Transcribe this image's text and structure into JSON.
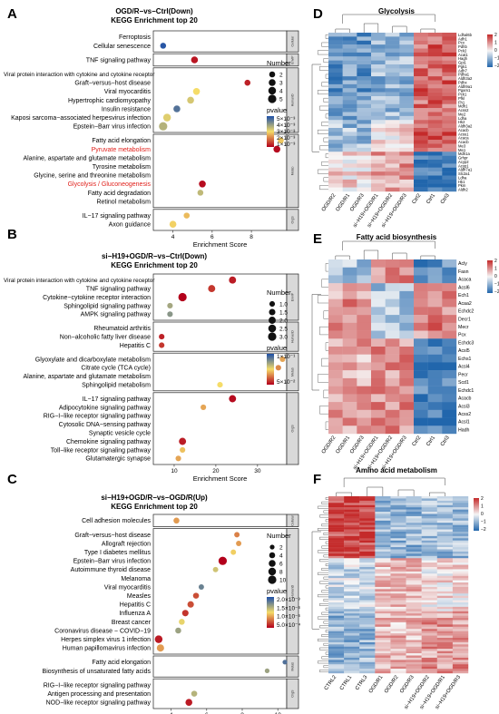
{
  "panels": [
    {
      "label": "A",
      "title_1": "OGD/R−vs−Ctrl(Down)",
      "title_2": "KEGG Enrichment top 20"
    },
    {
      "label": "B",
      "title_1": "si−H19+OGD/R−vs−Ctrl(Down)",
      "title_2": "KEGG Enrichment top 20"
    },
    {
      "label": "C",
      "title_1": "si−H19+OGD/R−vs−OGD/R(Up)",
      "title_2": "KEGG Enrichment top 20"
    },
    {
      "label": "D",
      "title_1": "Glycolysis"
    },
    {
      "label": "E",
      "title_1": "Fatty acid biosynthesis"
    },
    {
      "label": "F",
      "title_1": "Amino acid metabolism"
    }
  ],
  "chart_data": [
    {
      "type": "scatter",
      "panel": "A",
      "xlabel": "Enrichment Score",
      "xticks": [
        4,
        6,
        8
      ],
      "xlim": [
        3,
        9.8
      ],
      "size_legend_title": "Number",
      "size_legend": [
        2,
        3,
        4,
        5
      ],
      "color_legend_title": "pvalue",
      "color_legend": [
        "5×10⁻³",
        "4×10⁻³",
        "3×10⁻³",
        "2×10⁻³",
        "1×10⁻³"
      ],
      "color_range": [
        0.001,
        0.005
      ],
      "groups": [
        {
          "strip": "Cellular",
          "terms": [
            {
              "term": "Ferroptosis",
              "x": null,
              "n": null,
              "p": null
            },
            {
              "term": "Cellular senescence",
              "x": 3.5,
              "n": 2,
              "p": 0.0049
            }
          ]
        },
        {
          "strip": "EnvIP",
          "terms": [
            {
              "term": "TNF signaling pathway",
              "x": 5.1,
              "n": 3,
              "p": 0.0012
            }
          ]
        },
        {
          "strip": "HumanD",
          "terms": [
            {
              "term": "Viral protein interaction with cytokine and cytokine receptor",
              "x": null,
              "n": null,
              "p": null
            },
            {
              "term": "Graft−versus−host disease",
              "x": 7.8,
              "n": 2,
              "p": 0.0013
            },
            {
              "term": "Viral myocarditis",
              "x": 5.2,
              "n": 3,
              "p": 0.003
            },
            {
              "term": "Hypertrophic cardiomyopathy",
              "x": 4.9,
              "n": 3,
              "p": 0.0033
            },
            {
              "term": "Insulin resistance",
              "x": 4.2,
              "n": 3,
              "p": 0.0045
            },
            {
              "term": "Kaposi sarcoma−associated herpesvirus infection",
              "x": 3.7,
              "n": 4,
              "p": 0.0032
            },
            {
              "term": "Epstein−Barr virus infection",
              "x": 3.5,
              "n": 5,
              "p": 0.0036
            }
          ]
        },
        {
          "strip": "Metab",
          "terms": [
            {
              "term": "Fatty acid elongation",
              "x": 9.5,
              "n": 2,
              "p": 0.0028
            },
            {
              "term": "Pyruvate metabolism",
              "x": 9.3,
              "n": 3,
              "p": 0.0011,
              "highlight": true
            },
            {
              "term": "Alanine, aspartate and glutamate metabolism",
              "x": null,
              "n": null,
              "p": null
            },
            {
              "term": "Tyrosine metabolism",
              "x": null,
              "n": null,
              "p": null
            },
            {
              "term": "Glycine, serine and threonine metabolism",
              "x": null,
              "n": null,
              "p": null
            },
            {
              "term": "Glycolysis / Gluconeogenesis",
              "x": 5.5,
              "n": 3,
              "p": 0.0011,
              "highlight": true
            },
            {
              "term": "Fatty acid degradation",
              "x": 5.4,
              "n": 2,
              "p": 0.0035
            },
            {
              "term": "Retinol metabolism",
              "x": null,
              "n": null,
              "p": null
            }
          ]
        },
        {
          "strip": "OrgS",
          "terms": [
            {
              "term": "IL−17 signaling pathway",
              "x": 4.7,
              "n": 2,
              "p": 0.0027
            },
            {
              "term": "Axon guidance",
              "x": 4.0,
              "n": 3,
              "p": 0.0029
            }
          ]
        }
      ]
    },
    {
      "type": "scatter",
      "panel": "B",
      "xlabel": "Enrichment Score",
      "xticks": [
        10,
        20,
        30
      ],
      "xlim": [
        5,
        37
      ],
      "size_legend_title": "Number",
      "size_legend": [
        1.0,
        1.5,
        2.0,
        2.5,
        3.0
      ],
      "color_legend_title": "pvalue",
      "color_legend": [
        "1×10⁻¹",
        "5×10⁻²"
      ],
      "color_range": [
        0.03,
        0.11
      ],
      "groups": [
        {
          "strip": "EnvIP",
          "terms": [
            {
              "term": "Viral protein interaction with cytokine and cytokine receptor",
              "x": 24,
              "n": 2,
              "p": 0.035
            },
            {
              "term": "TNF signaling pathway",
              "x": 19,
              "n": 2,
              "p": 0.04
            },
            {
              "term": "Cytokine−cytokine receptor interaction",
              "x": 12,
              "n": 3,
              "p": 0.03
            },
            {
              "term": "Sphingolipid signaling pathway",
              "x": 9,
              "n": 1,
              "p": 0.085
            },
            {
              "term": "AMPK signaling pathway",
              "x": 9,
              "n": 1,
              "p": 0.09
            }
          ]
        },
        {
          "strip": "HumanD",
          "terms": [
            {
              "term": "Rheumatoid arthritis",
              "x": null,
              "n": null,
              "p": null
            },
            {
              "term": "Non−alcoholic fatty liver disease",
              "x": 7,
              "n": 1,
              "p": 0.036
            },
            {
              "term": "Hepatitis C",
              "x": 7,
              "n": 1,
              "p": 0.04
            }
          ]
        },
        {
          "strip": "Metab",
          "terms": [
            {
              "term": "Glyoxylate and dicarboxylate metabolism",
              "x": 36,
              "n": 1,
              "p": 0.06
            },
            {
              "term": "Citrate cycle (TCA cycle)",
              "x": 35,
              "n": 1,
              "p": 0.055
            },
            {
              "term": "Alanine, aspartate and glutamate metabolism",
              "x": 33,
              "n": 1,
              "p": 0.05
            },
            {
              "term": "Sphingolipid metabolism",
              "x": 21,
              "n": 1,
              "p": 0.07
            }
          ]
        },
        {
          "strip": "OrgS",
          "terms": [
            {
              "term": "IL−17 signaling pathway",
              "x": 24,
              "n": 2,
              "p": 0.032
            },
            {
              "term": "Adipocytokine signaling pathway",
              "x": 17,
              "n": 1,
              "p": 0.06
            },
            {
              "term": "RIG−I−like receptor signaling pathway",
              "x": null,
              "n": null,
              "p": null
            },
            {
              "term": "Cytosolic DNA−sensing pathway",
              "x": null,
              "n": null,
              "p": null
            },
            {
              "term": "Synaptic vesicle cycle",
              "x": null,
              "n": null,
              "p": null
            },
            {
              "term": "Chemokine signaling pathway",
              "x": 12,
              "n": 2,
              "p": 0.035
            },
            {
              "term": "Toll−like receptor signaling pathway",
              "x": 12,
              "n": 1,
              "p": 0.065
            },
            {
              "term": "Glutamatergic synapse",
              "x": 11,
              "n": 1,
              "p": 0.06
            }
          ]
        }
      ]
    },
    {
      "type": "scatter",
      "panel": "C",
      "xlabel": "Enrichment Score",
      "xticks": [
        4,
        6,
        8,
        10
      ],
      "xlim": [
        3,
        10.5
      ],
      "size_legend_title": "Number",
      "size_legend": [
        2,
        4,
        6,
        8,
        10
      ],
      "color_legend_title": "pvalue",
      "color_legend": [
        "2.0×10⁻³",
        "1.5×10⁻³",
        "1.0×10⁻³",
        "5.0×10⁻⁴"
      ],
      "color_range": [
        0.0003,
        0.002
      ],
      "groups": [
        {
          "strip": "Cellular",
          "terms": [
            {
              "term": "Cell adhesion molecules",
              "x": 4.3,
              "n": 4,
              "p": 0.0009
            }
          ]
        },
        {
          "strip": "HumanD",
          "terms": [
            {
              "term": "Graft−versus−host disease",
              "x": 7.7,
              "n": 3,
              "p": 0.0008
            },
            {
              "term": "Allograft rejection",
              "x": 7.8,
              "n": 3,
              "p": 0.0009
            },
            {
              "term": "Type I diabetes mellitus",
              "x": 7.5,
              "n": 3,
              "p": 0.0011
            },
            {
              "term": "Epstein−Barr virus infection",
              "x": 6.9,
              "n": 10,
              "p": 0.0003
            },
            {
              "term": "Autoimmune thyroid disease",
              "x": 6.5,
              "n": 3,
              "p": 0.0013
            },
            {
              "term": "Melanoma",
              "x": null,
              "n": null,
              "p": null
            },
            {
              "term": "Viral myocarditis",
              "x": 5.7,
              "n": 3,
              "p": 0.0017
            },
            {
              "term": "Measles",
              "x": 5.4,
              "n": 4,
              "p": 0.0006
            },
            {
              "term": "Hepatitis C",
              "x": 5.1,
              "n": 5,
              "p": 0.0006
            },
            {
              "term": "Influenza A",
              "x": 4.8,
              "n": 5,
              "p": 0.0005
            },
            {
              "term": "Breast cancer",
              "x": 4.6,
              "n": 4,
              "p": 0.0012
            },
            {
              "term": "Coronavirus disease − COVID−19",
              "x": 4.4,
              "n": 4,
              "p": 0.0015
            },
            {
              "term": "Herpes simplex virus 1 infection",
              "x": 3.3,
              "n": 8,
              "p": 0.0004
            },
            {
              "term": "Human papillomavirus infection",
              "x": 3.4,
              "n": 7,
              "p": 0.0009
            }
          ]
        },
        {
          "strip": "Metab",
          "terms": [
            {
              "term": "Fatty acid elongation",
              "x": 10.4,
              "n": 2,
              "p": 0.0018
            },
            {
              "term": "Biosynthesis of unsaturated fatty acids",
              "x": 9.4,
              "n": 2,
              "p": 0.0015
            }
          ]
        },
        {
          "strip": "OrgS",
          "terms": [
            {
              "term": "RIG−I−like receptor signaling pathway",
              "x": null,
              "n": null,
              "p": null
            },
            {
              "term": "Antigen processing and presentation",
              "x": 5.3,
              "n": 4,
              "p": 0.0014
            },
            {
              "term": "NOD−like receptor signaling pathway",
              "x": 5.0,
              "n": 6,
              "p": 0.0004
            }
          ]
        }
      ]
    },
    {
      "type": "heatmap",
      "panel": "D",
      "columns": [
        "OGD/R2",
        "OGD/R1",
        "OGD/R3",
        "si−H19+OGD/R1",
        "si−H19+OGD/R2",
        "si−H19+OGD/R3",
        "Ctrl2",
        "Ctrl1",
        "Ctrl3"
      ],
      "rows": [
        "Ldhal6b",
        "Adh1",
        "Pcx",
        "Pdhb",
        "Pck2",
        "Acat1",
        "Hagh",
        "Gpi1",
        "Pgk1",
        "Adh7",
        "Pdha1",
        "Aldh3a2",
        "Pdhx",
        "Aldh9a1",
        "Pgam1",
        "Pck1",
        "Pfkl",
        "Fh1",
        "Mdh1",
        "Acss2",
        "Me2",
        "Ldha",
        "Hk2",
        "Aldh3a2",
        "Acacb",
        "Acss1",
        "Acaca",
        "Acacb",
        "Me3",
        "Me1",
        "Mdh1a",
        "Grhpr",
        "Acyp2",
        "Acyp1",
        "Aldh7a1",
        "Slc2a1",
        "Ldha",
        "Hk1",
        "Pkm",
        "Aldh2"
      ],
      "scale": [
        -2,
        2
      ],
      "scale_ticks": [
        "2",
        "1",
        "0",
        "−1",
        "−2"
      ]
    },
    {
      "type": "heatmap",
      "panel": "E",
      "columns": [
        "OGD/R2",
        "OGD/R1",
        "OGD/R3",
        "si−H19+OGD/R1",
        "si−H19+OGD/R2",
        "si−H19+OGD/R3",
        "Ctrl2",
        "Ctrl1",
        "Ctrl3"
      ],
      "rows": [
        "Acly",
        "Fasn",
        "Acaca",
        "Acsl6",
        "Ech1",
        "Acaa2",
        "Echdc2",
        "Decr1",
        "Mecr",
        "Pcx",
        "Echdc3",
        "Acsl5",
        "Echs1",
        "Acsl4",
        "Pecr",
        "Scd1",
        "Echdc1",
        "Acacb",
        "Acsl3",
        "Acss2",
        "Acsl1",
        "Hadh"
      ],
      "scale": [
        -2,
        2
      ],
      "scale_ticks": [
        "2",
        "1",
        "0",
        "−1",
        "−2"
      ]
    },
    {
      "type": "heatmap",
      "panel": "F",
      "columns": [
        "CTRL2",
        "CTRL1",
        "CTRL3",
        "OGD/R1",
        "OGD/R2",
        "OGD/R3",
        "si−H19+OGD/R2",
        "si−H19+OGD/R1",
        "si−H19+OGD/R3"
      ],
      "rows": [],
      "n_rows": 80,
      "scale": [
        -2,
        2
      ],
      "scale_ticks": [
        "2",
        "1",
        "0",
        "−1",
        "−2"
      ]
    }
  ]
}
